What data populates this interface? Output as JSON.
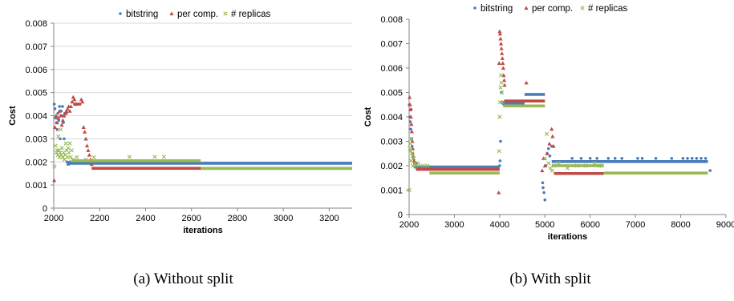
{
  "colors": {
    "bitstring": "#4a7ebb",
    "per_comp": "#be4b48",
    "replicas": "#98b954",
    "grid": "#d9d9d9",
    "axis": "#868686"
  },
  "chart_data": [
    {
      "type": "scatter",
      "caption": "(a) Without split",
      "xlabel": "iterations",
      "ylabel": "Cost",
      "xlim": [
        2000,
        3300
      ],
      "ylim": [
        0,
        0.008
      ],
      "xticks": [
        2000,
        2200,
        2400,
        2600,
        2800,
        3000,
        3200
      ],
      "xtick_labels": [
        "2000",
        "2200",
        "2400",
        "2600",
        "2800",
        "3000",
        "3200"
      ],
      "yticks": [
        0,
        0.001,
        0.002,
        0.003,
        0.004,
        0.005,
        0.006,
        0.007,
        0.008
      ],
      "ytick_labels": [
        "0",
        "0.001",
        "0.002",
        "0.003",
        "0.004",
        "0.005",
        "0.006",
        "0.007",
        "0.008"
      ],
      "grid": "horizontal",
      "legend": "top",
      "series": [
        {
          "name": "bitstring",
          "marker": "dot",
          "points": [
            [
              2002,
              0.0045
            ],
            [
              2005,
              0.0043
            ],
            [
              2008,
              0.0039
            ],
            [
              2012,
              0.0037
            ],
            [
              2015,
              0.0034
            ],
            [
              2018,
              0.0041
            ],
            [
              2022,
              0.0038
            ],
            [
              2025,
              0.0044
            ],
            [
              2028,
              0.003
            ],
            [
              2032,
              0.0042
            ],
            [
              2035,
              0.004
            ],
            [
              2038,
              0.0044
            ],
            [
              2042,
              0.0037
            ],
            [
              2045,
              0.003
            ],
            [
              2048,
              0.0041
            ],
            [
              2055,
              0.0041
            ],
            [
              2058,
              0.002
            ],
            [
              2062,
              0.0019
            ],
            [
              2065,
              0.0019
            ],
            [
              2070,
              0.002
            ]
          ],
          "segments": [
            [
              2060,
              3300,
              0.00194
            ]
          ]
        },
        {
          "name": "per comp.",
          "marker": "triangle",
          "points": [
            [
              2002,
              0.0012
            ],
            [
              2005,
              0.0035
            ],
            [
              2010,
              0.004
            ],
            [
              2015,
              0.0037
            ],
            [
              2020,
              0.0039
            ],
            [
              2025,
              0.0042
            ],
            [
              2030,
              0.004
            ],
            [
              2035,
              0.0036
            ],
            [
              2040,
              0.0038
            ],
            [
              2045,
              0.004
            ],
            [
              2050,
              0.0041
            ],
            [
              2055,
              0.0042
            ],
            [
              2060,
              0.0043
            ],
            [
              2065,
              0.0044
            ],
            [
              2070,
              0.0042
            ],
            [
              2075,
              0.0044
            ],
            [
              2080,
              0.0046
            ],
            [
              2085,
              0.0048
            ],
            [
              2090,
              0.0047
            ],
            [
              2095,
              0.0045
            ],
            [
              2120,
              0.0047
            ],
            [
              2125,
              0.0046
            ],
            [
              2130,
              0.0035
            ],
            [
              2135,
              0.0033
            ],
            [
              2140,
              0.003
            ],
            [
              2145,
              0.0027
            ],
            [
              2150,
              0.0025
            ],
            [
              2155,
              0.0023
            ],
            [
              2160,
              0.0021
            ],
            [
              2165,
              0.0019
            ]
          ],
          "segments": [
            [
              2085,
              2120,
              0.0045
            ],
            [
              2165,
              3300,
              0.00172
            ]
          ]
        },
        {
          "name": "# replicas",
          "marker": "x",
          "points": [
            [
              2003,
              0.0018
            ],
            [
              2008,
              0.0027
            ],
            [
              2012,
              0.0024
            ],
            [
              2015,
              0.0025
            ],
            [
              2018,
              0.0023
            ],
            [
              2020,
              0.0031
            ],
            [
              2022,
              0.0025
            ],
            [
              2025,
              0.0022
            ],
            [
              2028,
              0.0024
            ],
            [
              2030,
              0.0034
            ],
            [
              2033,
              0.0023
            ],
            [
              2036,
              0.0026
            ],
            [
              2040,
              0.0022
            ],
            [
              2043,
              0.0024
            ],
            [
              2046,
              0.0021
            ],
            [
              2050,
              0.0023
            ],
            [
              2053,
              0.0028
            ],
            [
              2056,
              0.0025
            ],
            [
              2060,
              0.0022
            ],
            [
              2063,
              0.0026
            ],
            [
              2066,
              0.0024
            ],
            [
              2070,
              0.0028
            ],
            [
              2074,
              0.0022
            ],
            [
              2078,
              0.0025
            ],
            [
              2082,
              0.0021
            ],
            [
              2100,
              0.0022
            ],
            [
              2140,
              0.0021
            ],
            [
              2175,
              0.0022
            ],
            [
              2330,
              0.00222
            ],
            [
              2440,
              0.00222
            ],
            [
              2480,
              0.00222
            ]
          ],
          "segments": [
            [
              2080,
              2640,
              0.00205
            ],
            [
              2640,
              3300,
              0.00172
            ]
          ]
        }
      ]
    },
    {
      "type": "scatter",
      "caption": "(b) With split",
      "xlabel": "iterations",
      "ylabel": "Cost",
      "xlim": [
        2000,
        9000
      ],
      "ylim": [
        0,
        0.008
      ],
      "xticks": [
        2000,
        3000,
        4000,
        5000,
        6000,
        7000,
        8000,
        9000
      ],
      "xtick_labels": [
        "2000",
        "3000",
        "4000",
        "5000",
        "6000",
        "7000",
        "8000",
        "9000"
      ],
      "yticks": [
        0,
        0.001,
        0.002,
        0.003,
        0.004,
        0.005,
        0.006,
        0.007,
        0.008
      ],
      "ytick_labels": [
        "0",
        "0.001",
        "0.002",
        "0.003",
        "0.004",
        "0.005",
        "0.006",
        "0.007",
        "0.008"
      ],
      "grid": "none",
      "legend": "top",
      "series": [
        {
          "name": "bitstring",
          "marker": "dot",
          "points": [
            [
              2005,
              0.0045
            ],
            [
              2015,
              0.004
            ],
            [
              2025,
              0.0038
            ],
            [
              2035,
              0.0035
            ],
            [
              2045,
              0.0043
            ],
            [
              2055,
              0.0031
            ],
            [
              2065,
              0.0028
            ],
            [
              2080,
              0.0025
            ],
            [
              2095,
              0.0023
            ],
            [
              2120,
              0.0021
            ],
            [
              2150,
              0.0021
            ],
            [
              4000,
              0.002
            ],
            [
              4010,
              0.0022
            ],
            [
              4020,
              0.003
            ],
            [
              4040,
              0.005
            ],
            [
              4060,
              0.0046
            ],
            [
              4100,
              0.0045
            ],
            [
              4950,
              0.0013
            ],
            [
              4960,
              0.0011
            ],
            [
              4980,
              0.0009
            ],
            [
              5000,
              0.0006
            ],
            [
              5020,
              0.002
            ],
            [
              5050,
              0.0025
            ],
            [
              5080,
              0.0027
            ],
            [
              5110,
              0.0024
            ],
            [
              5150,
              0.0028
            ],
            [
              5600,
              0.0023
            ],
            [
              5800,
              0.0023
            ],
            [
              6000,
              0.0023
            ],
            [
              6150,
              0.0023
            ],
            [
              6400,
              0.0023
            ],
            [
              6550,
              0.0023
            ],
            [
              6700,
              0.0023
            ],
            [
              7050,
              0.0023
            ],
            [
              7150,
              0.0023
            ],
            [
              7450,
              0.0023
            ],
            [
              7800,
              0.0023
            ],
            [
              8050,
              0.0023
            ],
            [
              8150,
              0.0023
            ],
            [
              8250,
              0.0023
            ],
            [
              8350,
              0.0023
            ],
            [
              8450,
              0.0023
            ],
            [
              8550,
              0.0023
            ],
            [
              8650,
              0.0018
            ]
          ],
          "segments": [
            [
              2100,
              4000,
              0.00195
            ],
            [
              4050,
              4550,
              0.00455
            ],
            [
              4550,
              5000,
              0.00492
            ],
            [
              5150,
              8600,
              0.00217
            ]
          ]
        },
        {
          "name": "per comp.",
          "marker": "triangle",
          "points": [
            [
              2010,
              0.0048
            ],
            [
              2020,
              0.0045
            ],
            [
              2030,
              0.0043
            ],
            [
              2040,
              0.004
            ],
            [
              2050,
              0.0037
            ],
            [
              2060,
              0.0034
            ],
            [
              2070,
              0.003
            ],
            [
              2080,
              0.0027
            ],
            [
              2090,
              0.0024
            ],
            [
              2110,
              0.0022
            ],
            [
              3980,
              0.0009
            ],
            [
              3990,
              0.0062
            ],
            [
              4000,
              0.0075
            ],
            [
              4010,
              0.0074
            ],
            [
              4020,
              0.0072
            ],
            [
              4030,
              0.007
            ],
            [
              4040,
              0.0068
            ],
            [
              4050,
              0.0066
            ],
            [
              4060,
              0.0064
            ],
            [
              4070,
              0.0062
            ],
            [
              4080,
              0.006
            ],
            [
              4090,
              0.0057
            ],
            [
              4100,
              0.0055
            ],
            [
              4110,
              0.0053
            ],
            [
              4590,
              0.0054
            ],
            [
              4940,
              0.0018
            ],
            [
              4970,
              0.0023
            ],
            [
              5000,
              0.002
            ],
            [
              5050,
              0.0025
            ],
            [
              5100,
              0.0029
            ],
            [
              5150,
              0.0035
            ],
            [
              5170,
              0.0032
            ],
            [
              5190,
              0.0028
            ]
          ],
          "segments": [
            [
              2150,
              4000,
              0.00185
            ],
            [
              4100,
              5000,
              0.00465
            ],
            [
              5200,
              6300,
              0.00168
            ]
          ]
        },
        {
          "name": "# replicas",
          "marker": "x",
          "points": [
            [
              2005,
              0.001
            ],
            [
              2015,
              0.0027
            ],
            [
              2025,
              0.0029
            ],
            [
              2035,
              0.0026
            ],
            [
              2045,
              0.0022
            ],
            [
              2055,
              0.0031
            ],
            [
              2065,
              0.0025
            ],
            [
              2075,
              0.0024
            ],
            [
              2085,
              0.002
            ],
            [
              2100,
              0.0023
            ],
            [
              2130,
              0.0021
            ],
            [
              2160,
              0.002
            ],
            [
              2200,
              0.0021
            ],
            [
              2300,
              0.002
            ],
            [
              2400,
              0.002
            ],
            [
              3990,
              0.0026
            ],
            [
              4000,
              0.004
            ],
            [
              4010,
              0.0046
            ],
            [
              4020,
              0.0052
            ],
            [
              4030,
              0.0057
            ],
            [
              4040,
              0.0054
            ],
            [
              4050,
              0.005
            ],
            [
              4060,
              0.0046
            ],
            [
              5000,
              0.0023
            ],
            [
              5040,
              0.0033
            ],
            [
              5080,
              0.0021
            ],
            [
              5120,
              0.0019
            ],
            [
              5160,
              0.0018
            ],
            [
              5200,
              0.002
            ],
            [
              5300,
              0.0021
            ],
            [
              5500,
              0.0019
            ],
            [
              5700,
              0.002
            ],
            [
              5900,
              0.002
            ],
            [
              6100,
              0.0021
            ],
            [
              6200,
              0.002
            ],
            [
              6250,
              0.002
            ]
          ],
          "segments": [
            [
              2450,
              4000,
              0.0017
            ],
            [
              4080,
              5000,
              0.00445
            ],
            [
              5150,
              6300,
              0.002
            ],
            [
              6300,
              8600,
              0.0017
            ]
          ]
        }
      ]
    }
  ]
}
